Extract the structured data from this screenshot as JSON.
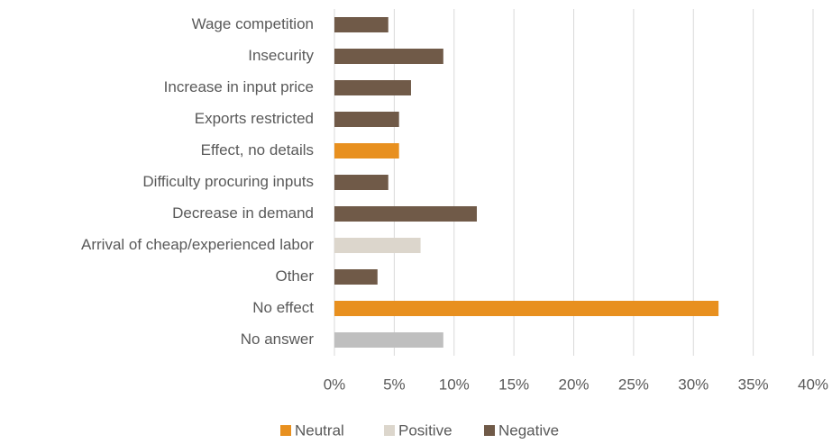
{
  "chart_data": {
    "type": "hbar",
    "categories": [
      "Wage competition",
      "Insecurity",
      "Increase in input price",
      "Exports restricted",
      "Effect, no details",
      "Difficulty procuring inputs",
      "Decrease in demand",
      "Arrival of cheap/experienced labor",
      "Other",
      "No effect",
      "No answer"
    ],
    "values": [
      4.5,
      9.1,
      6.4,
      5.4,
      5.4,
      4.5,
      11.9,
      7.2,
      3.6,
      32.1,
      9.1
    ],
    "colors": [
      "#705a48",
      "#705a48",
      "#705a48",
      "#705a48",
      "#e8901f",
      "#705a48",
      "#705a48",
      "#dcd6cc",
      "#705a48",
      "#e8901f",
      "#bfbfbf"
    ],
    "xlim": [
      0,
      40
    ],
    "xticks": [
      {
        "value": 0,
        "label": "0%"
      },
      {
        "value": 5,
        "label": "5%"
      },
      {
        "value": 10,
        "label": "10%"
      },
      {
        "value": 15,
        "label": "15%"
      },
      {
        "value": 20,
        "label": "20%"
      },
      {
        "value": 25,
        "label": "25%"
      },
      {
        "value": 30,
        "label": "30%"
      },
      {
        "value": 35,
        "label": "35%"
      },
      {
        "value": 40,
        "label": "40%"
      }
    ],
    "grid": true,
    "legend": [
      {
        "name": "Neutral",
        "color": "#e8901f"
      },
      {
        "name": "Positive",
        "color": "#dcd6cc"
      },
      {
        "name": "Negative",
        "color": "#705a48"
      }
    ]
  }
}
